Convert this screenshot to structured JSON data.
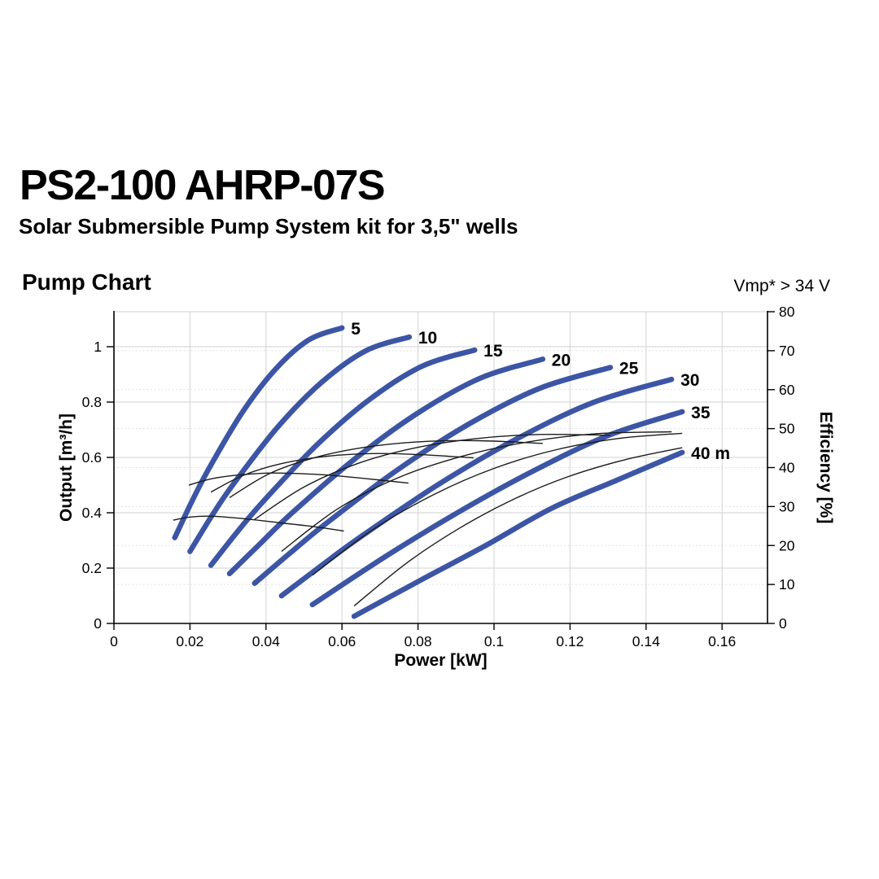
{
  "header": {
    "title": "PS2-100 AHRP-07S",
    "subtitle": "Solar Submersible Pump System kit for 3,5\" wells"
  },
  "colors": {
    "pump_curve": "#3c55a5",
    "efficiency_curve": "#1c1c1c",
    "grid_major": "#d9d9d9",
    "grid_minor": "#d8d8d8",
    "axis": "#000000",
    "text": "#000000"
  },
  "chart_data": {
    "type": "line",
    "title": "Pump Chart",
    "annotation": "Vmp* > 34 V",
    "xlabel": "Power [kW]",
    "ylabel_left": "Output [m³/h]",
    "ylabel_right": "Efficiency [%]",
    "xlim": [
      0,
      0.172
    ],
    "ylim_left": [
      0,
      1.13
    ],
    "ylim_right": [
      0,
      80
    ],
    "grid": {
      "vertical_major": true,
      "horizontal_major": true,
      "horizontal_minor_dotted": true
    },
    "legend_position": "labels-at-curve-ends",
    "x_ticks": [
      {
        "v": 0,
        "label": "0"
      },
      {
        "v": 0.02,
        "label": "0.02"
      },
      {
        "v": 0.04,
        "label": "0.04"
      },
      {
        "v": 0.06,
        "label": "0.06"
      },
      {
        "v": 0.08,
        "label": "0.08"
      },
      {
        "v": 0.1,
        "label": "0.1"
      },
      {
        "v": 0.12,
        "label": "0.12"
      },
      {
        "v": 0.14,
        "label": "0.14"
      },
      {
        "v": 0.16,
        "label": "0.16"
      }
    ],
    "y_ticks_left": [
      {
        "v": 0,
        "label": "0"
      },
      {
        "v": 0.2,
        "label": "0.2"
      },
      {
        "v": 0.4,
        "label": "0.4"
      },
      {
        "v": 0.6,
        "label": "0.6"
      },
      {
        "v": 0.8,
        "label": "0.8"
      },
      {
        "v": 1,
        "label": "1"
      }
    ],
    "y_ticks_right": [
      {
        "v": 0,
        "label": "0"
      },
      {
        "v": 10,
        "label": "10"
      },
      {
        "v": 20,
        "label": "20"
      },
      {
        "v": 30,
        "label": "30"
      },
      {
        "v": 40,
        "label": "40"
      },
      {
        "v": 50,
        "label": "50"
      },
      {
        "v": 60,
        "label": "60"
      },
      {
        "v": 70,
        "label": "70"
      },
      {
        "v": 80,
        "label": "80"
      }
    ],
    "pump_curves": [
      {
        "head_m": 5,
        "label": "5",
        "points": [
          [
            0.016,
            0.31
          ],
          [
            0.0203,
            0.435
          ],
          [
            0.0248,
            0.555
          ],
          [
            0.0336,
            0.759
          ],
          [
            0.0424,
            0.917
          ],
          [
            0.0512,
            1.024
          ],
          [
            0.06,
            1.068
          ]
        ]
      },
      {
        "head_m": 10,
        "label": "10",
        "points": [
          [
            0.02,
            0.26
          ],
          [
            0.0258,
            0.39
          ],
          [
            0.0315,
            0.505
          ],
          [
            0.0431,
            0.71
          ],
          [
            0.0546,
            0.871
          ],
          [
            0.0662,
            0.985
          ],
          [
            0.0777,
            1.035
          ]
        ]
      },
      {
        "head_m": 15,
        "label": "15",
        "points": [
          [
            0.0255,
            0.21
          ],
          [
            0.0324,
            0.33
          ],
          [
            0.0394,
            0.443
          ],
          [
            0.0533,
            0.644
          ],
          [
            0.0671,
            0.808
          ],
          [
            0.081,
            0.929
          ],
          [
            0.0949,
            0.988
          ]
        ]
      },
      {
        "head_m": 20,
        "label": "20",
        "points": [
          [
            0.0304,
            0.18
          ],
          [
            0.0386,
            0.29
          ],
          [
            0.0469,
            0.4
          ],
          [
            0.0634,
            0.595
          ],
          [
            0.0798,
            0.759
          ],
          [
            0.0963,
            0.886
          ],
          [
            0.1128,
            0.955
          ]
        ]
      },
      {
        "head_m": 25,
        "label": "25",
        "points": [
          [
            0.037,
            0.145
          ],
          [
            0.0464,
            0.255
          ],
          [
            0.0557,
            0.36
          ],
          [
            0.0744,
            0.553
          ],
          [
            0.0932,
            0.719
          ],
          [
            0.1119,
            0.849
          ],
          [
            0.1306,
            0.925
          ]
        ]
      },
      {
        "head_m": 30,
        "label": "30",
        "points": [
          [
            0.0441,
            0.1
          ],
          [
            0.0544,
            0.207
          ],
          [
            0.0646,
            0.31
          ],
          [
            0.0851,
            0.5
          ],
          [
            0.1057,
            0.665
          ],
          [
            0.1262,
            0.799
          ],
          [
            0.1467,
            0.882
          ]
        ]
      },
      {
        "head_m": 35,
        "label": "35",
        "points": [
          [
            0.0522,
            0.068
          ],
          [
            0.0717,
            0.244
          ],
          [
            0.0911,
            0.406
          ],
          [
            0.1106,
            0.553
          ],
          [
            0.13,
            0.679
          ],
          [
            0.1495,
            0.765
          ]
        ]
      },
      {
        "head_m": 40,
        "label": "40 m",
        "points": [
          [
            0.0632,
            0.026
          ],
          [
            0.0805,
            0.155
          ],
          [
            0.0977,
            0.281
          ],
          [
            0.115,
            0.415
          ],
          [
            0.1322,
            0.517
          ],
          [
            0.1495,
            0.618
          ]
        ]
      }
    ],
    "efficiency_curves": [
      {
        "head_m": 5,
        "points": [
          [
            0.0156,
            26.5
          ],
          [
            0.02,
            27.3
          ],
          [
            0.026,
            27.5
          ],
          [
            0.034,
            26.9
          ],
          [
            0.044,
            25.8
          ],
          [
            0.053,
            24.8
          ],
          [
            0.0605,
            23.7
          ]
        ]
      },
      {
        "head_m": 10,
        "points": [
          [
            0.0197,
            35.5
          ],
          [
            0.026,
            37.2
          ],
          [
            0.034,
            38.2
          ],
          [
            0.042,
            38.6
          ],
          [
            0.054,
            38.2
          ],
          [
            0.066,
            37.2
          ],
          [
            0.0775,
            36.0
          ]
        ]
      },
      {
        "head_m": 15,
        "points": [
          [
            0.0255,
            33.7
          ],
          [
            0.034,
            38.0
          ],
          [
            0.044,
            41.0
          ],
          [
            0.056,
            42.9
          ],
          [
            0.068,
            43.6
          ],
          [
            0.081,
            43.3
          ],
          [
            0.0946,
            42.5
          ]
        ]
      },
      {
        "head_m": 20,
        "points": [
          [
            0.0304,
            32.3
          ],
          [
            0.041,
            38.5
          ],
          [
            0.053,
            42.6
          ],
          [
            0.066,
            45.2
          ],
          [
            0.08,
            46.6
          ],
          [
            0.096,
            46.9
          ],
          [
            0.1128,
            46.2
          ]
        ]
      },
      {
        "head_m": 25,
        "points": [
          [
            0.037,
            26.7
          ],
          [
            0.05,
            35.0
          ],
          [
            0.064,
            41.0
          ],
          [
            0.079,
            45.0
          ],
          [
            0.095,
            47.4
          ],
          [
            0.112,
            48.5
          ],
          [
            0.1306,
            48.3
          ]
        ]
      },
      {
        "head_m": 30,
        "points": [
          [
            0.0441,
            18.5
          ],
          [
            0.059,
            29.5
          ],
          [
            0.075,
            37.5
          ],
          [
            0.092,
            43.0
          ],
          [
            0.109,
            46.6
          ],
          [
            0.127,
            48.7
          ],
          [
            0.1467,
            49.2
          ]
        ]
      },
      {
        "head_m": 35,
        "points": [
          [
            0.0522,
            12.4
          ],
          [
            0.068,
            24.0
          ],
          [
            0.084,
            33.0
          ],
          [
            0.1,
            39.8
          ],
          [
            0.116,
            44.5
          ],
          [
            0.133,
            47.5
          ],
          [
            0.1495,
            48.8
          ]
        ]
      },
      {
        "head_m": 40,
        "points": [
          [
            0.0632,
            4.5
          ],
          [
            0.077,
            15.5
          ],
          [
            0.091,
            24.5
          ],
          [
            0.105,
            31.8
          ],
          [
            0.119,
            37.5
          ],
          [
            0.134,
            41.9
          ],
          [
            0.1495,
            45.1
          ]
        ]
      }
    ]
  }
}
